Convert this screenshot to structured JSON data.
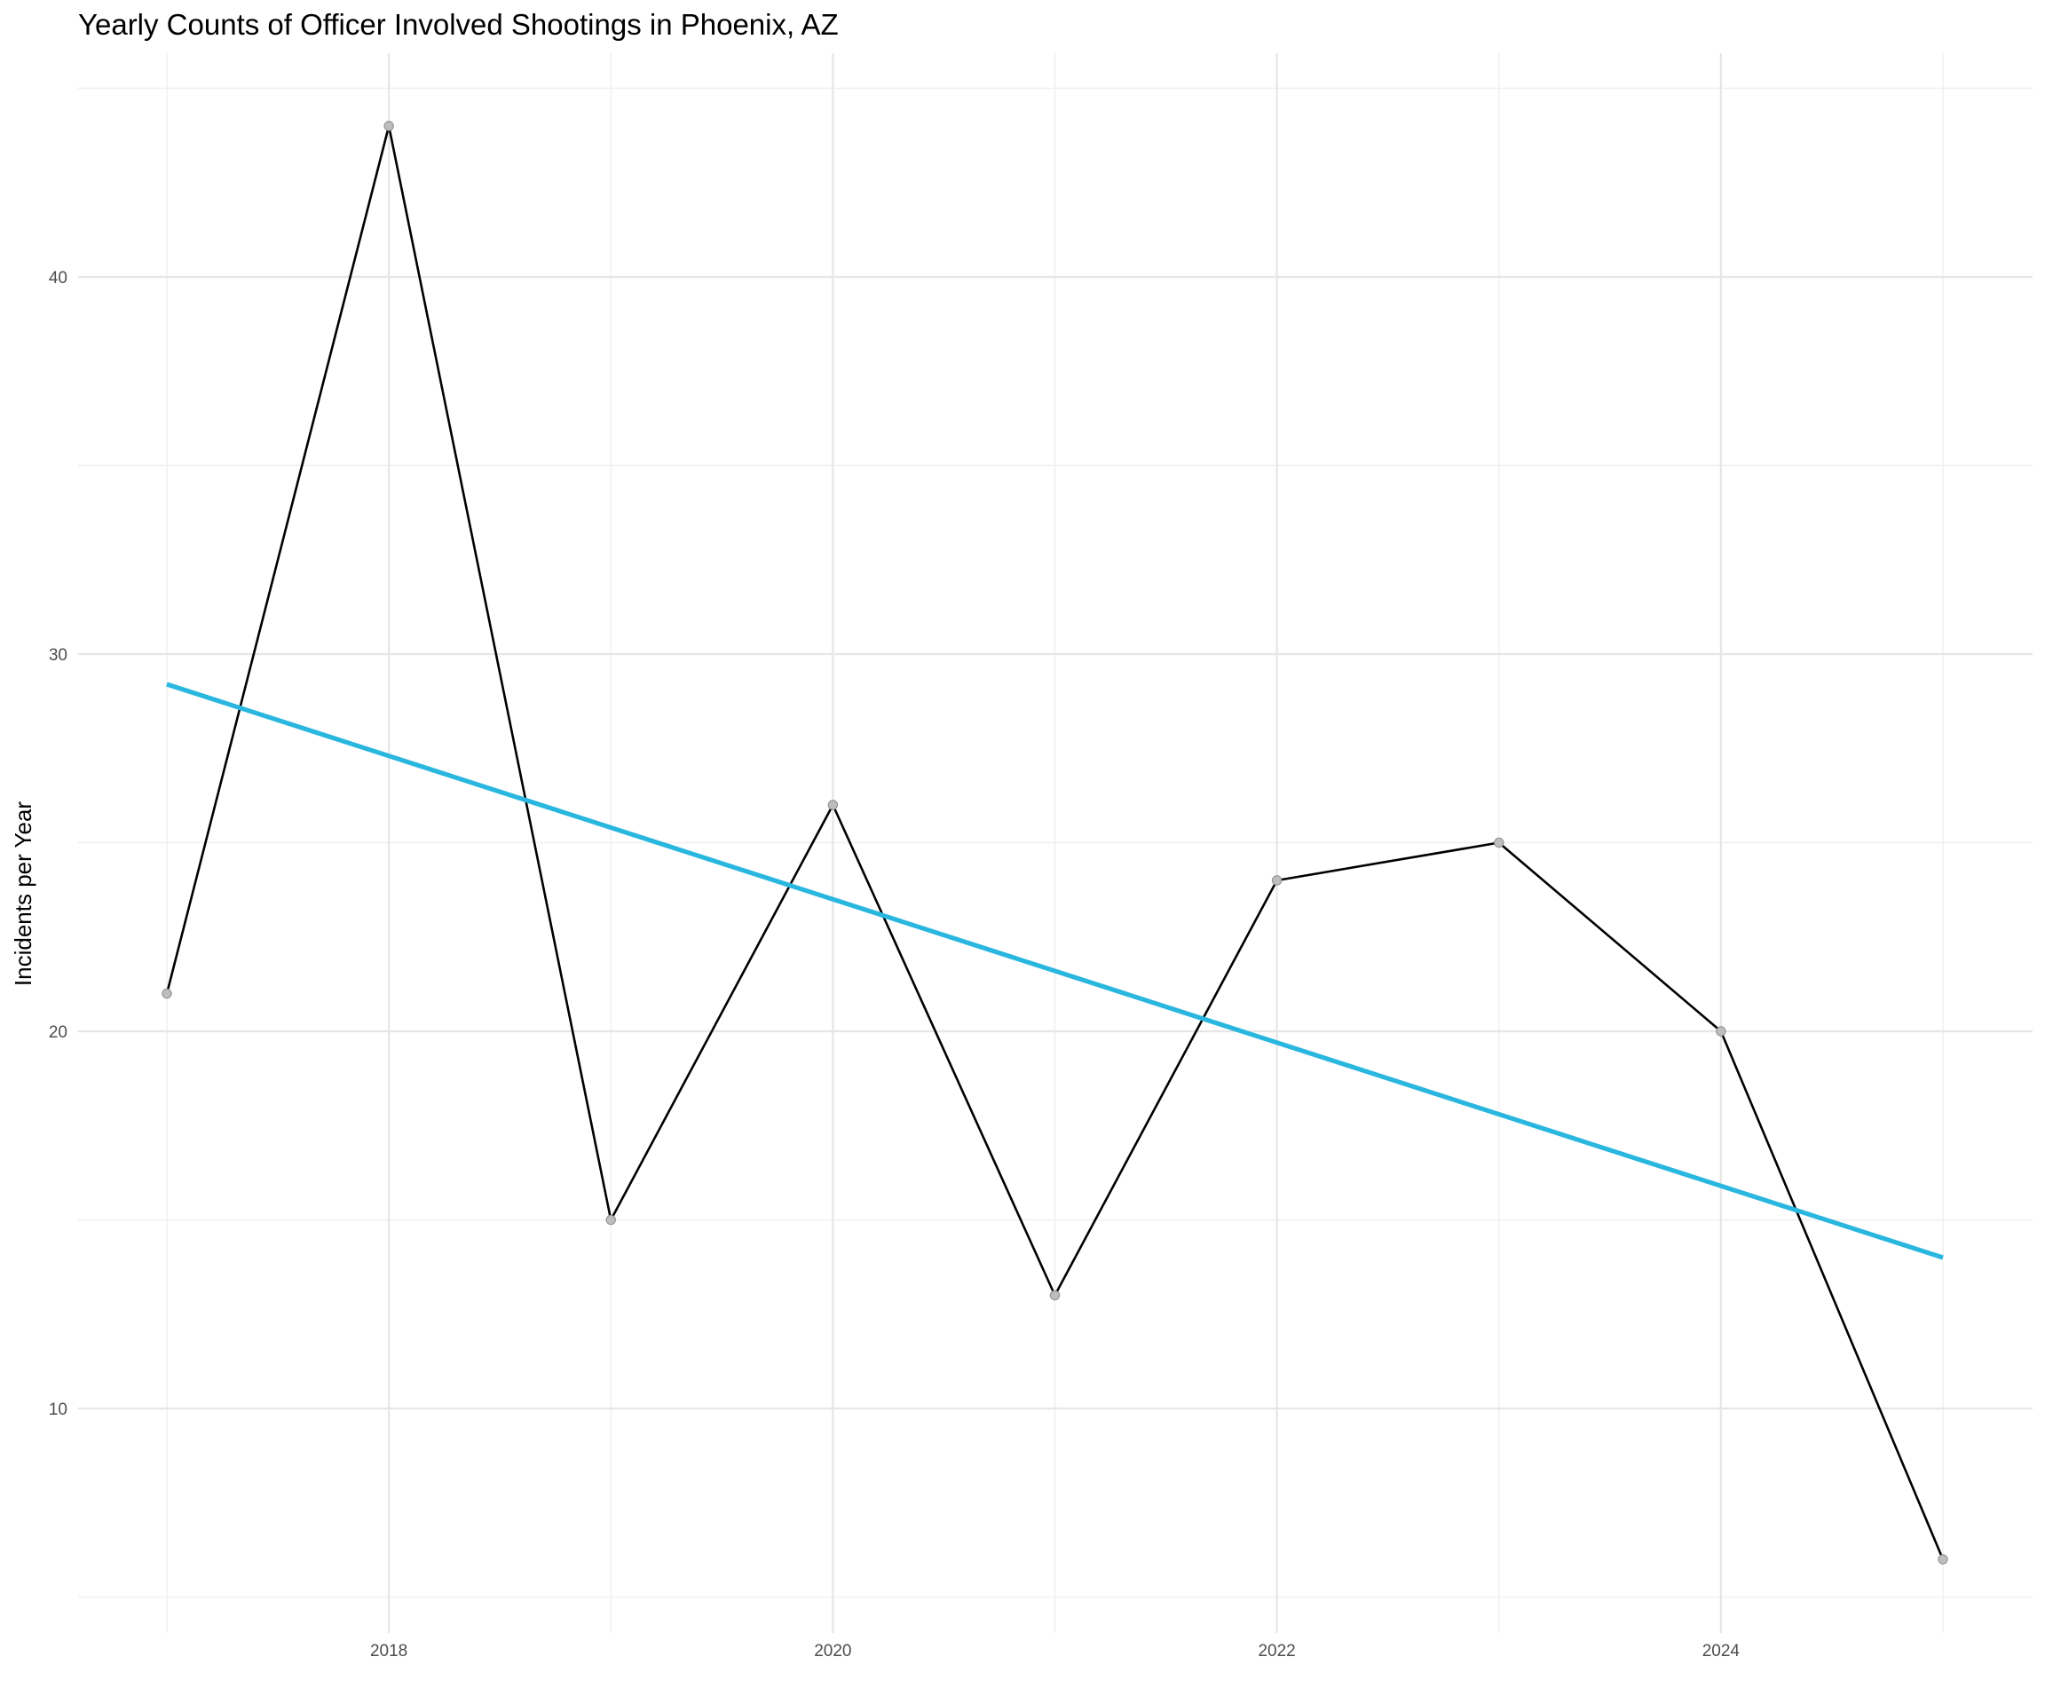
{
  "chart_data": {
    "type": "line",
    "title": "Yearly Counts of Officer Involved Shootings in Phoenix, AZ",
    "xlabel": "",
    "ylabel": "Incidents per Year",
    "x": [
      2017,
      2018,
      2019,
      2020,
      2021,
      2022,
      2023,
      2024,
      2025
    ],
    "series": [
      {
        "values": [
          21,
          44,
          15,
          26,
          13,
          24,
          25,
          20,
          6
        ],
        "color": "#000000",
        "marker_color": "#bdbdbd"
      }
    ],
    "trendline": {
      "x": [
        2017,
        2025
      ],
      "y": [
        29.2,
        14.0
      ],
      "color": "#29b6df"
    },
    "x_ticks": [
      2018,
      2020,
      2022,
      2024
    ],
    "x_tick_labels": [
      "2018",
      "2020",
      "2022",
      "2024"
    ],
    "y_ticks": [
      10,
      20,
      30,
      40
    ],
    "y_tick_labels": [
      "10",
      "20",
      "30",
      "40"
    ],
    "xlim": [
      2016.6,
      2025.4
    ],
    "ylim": [
      4.6,
      45.9
    ],
    "grid": true,
    "legend": "none"
  }
}
